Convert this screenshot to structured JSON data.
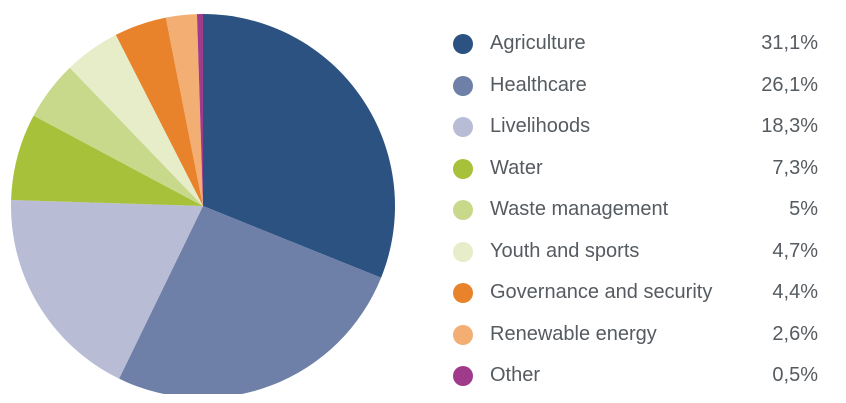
{
  "chart_data": {
    "type": "pie",
    "categories": [
      "Agriculture",
      "Healthcare",
      "Livelihoods",
      "Water",
      "Waste management",
      "Youth and sports",
      "Governance and security",
      "Renewable energy",
      "Other"
    ],
    "values": [
      31.1,
      26.1,
      18.3,
      7.3,
      5,
      4.7,
      4.4,
      2.6,
      0.5
    ],
    "value_labels": [
      "31,1%",
      "26,1%",
      "18,3%",
      "7,3%",
      "5%",
      "4,7%",
      "4,4%",
      "2,6%",
      "0,5%"
    ],
    "colors": [
      "#2c5282",
      "#6e80a8",
      "#b8bcd4",
      "#a7c23a",
      "#c8d98b",
      "#e6edc8",
      "#e8822b",
      "#f2ae73",
      "#a03a8a"
    ],
    "legend_position": "right",
    "start_angle": "12 o'clock",
    "direction": "clockwise"
  }
}
